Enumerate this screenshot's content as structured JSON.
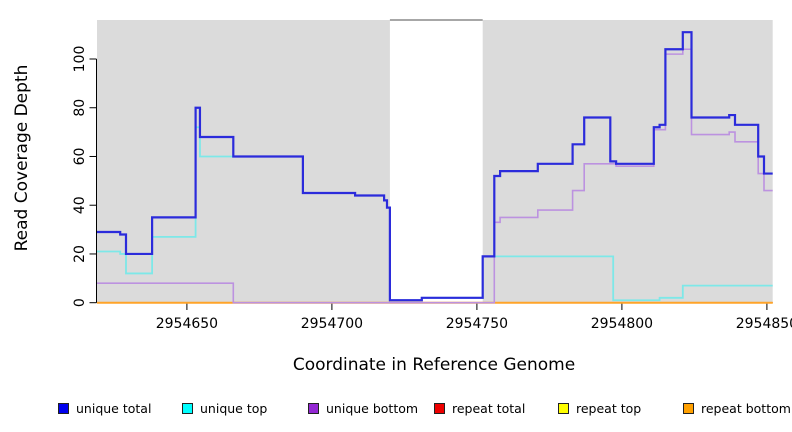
{
  "chart_data": {
    "type": "line",
    "style": "step-coverage",
    "title": "",
    "xlabel": "Coordinate in Reference Genome",
    "ylabel": "Read Coverage Depth",
    "xlim": [
      2954619,
      2954852
    ],
    "ylim": [
      0,
      118.5
    ],
    "xticks": [
      2954650,
      2954700,
      2954750,
      2954800,
      2954850
    ],
    "xtick_labels": [
      "2954650",
      "2954700",
      "2954750",
      "2954800",
      "2954850"
    ],
    "yticks": [
      0,
      20,
      40,
      60,
      80,
      100
    ],
    "ytick_labels": [
      "0",
      "20",
      "40",
      "60",
      "80",
      "100"
    ],
    "grid": false,
    "legend_position": "bottom",
    "shaded_regions": [
      {
        "x0": 2954619,
        "x1": 2954720,
        "v0": 0,
        "v1": 116,
        "color": "#dbdbdb"
      },
      {
        "x0": 2954752,
        "x1": 2954852,
        "v0": 0,
        "v1": 116,
        "color": "#dbdbdb"
      }
    ],
    "gap_top_edge": {
      "x0": 2954720,
      "x1": 2954752,
      "v": 116,
      "color": "#8a8a8a"
    },
    "series": [
      {
        "name": "unique total",
        "line_color": "#2b2bdb",
        "legend_color": "#0000ee",
        "steps": [
          [
            2954619,
            29
          ],
          [
            2954627,
            28
          ],
          [
            2954629,
            20
          ],
          [
            2954638,
            35
          ],
          [
            2954653,
            80
          ],
          [
            2954654.5,
            68
          ],
          [
            2954666,
            60
          ],
          [
            2954690,
            45
          ],
          [
            2954708,
            44
          ],
          [
            2954718,
            42
          ],
          [
            2954719,
            39
          ],
          [
            2954720,
            1
          ],
          [
            2954731,
            2
          ],
          [
            2954752,
            19
          ],
          [
            2954756,
            52
          ],
          [
            2954758,
            54
          ],
          [
            2954771,
            57
          ],
          [
            2954783,
            65
          ],
          [
            2954787,
            76
          ],
          [
            2954796,
            58
          ],
          [
            2954798,
            57
          ],
          [
            2954811,
            72
          ],
          [
            2954813,
            73
          ],
          [
            2954815,
            104
          ],
          [
            2954821,
            111
          ],
          [
            2954824,
            76
          ],
          [
            2954837,
            77
          ],
          [
            2954839,
            73
          ],
          [
            2954847,
            60
          ],
          [
            2954849,
            53
          ],
          [
            2954852,
            53
          ]
        ]
      },
      {
        "name": "unique top",
        "line_color": "#7de8e8",
        "legend_color": "#00ffff",
        "steps": [
          [
            2954619,
            21
          ],
          [
            2954627,
            20
          ],
          [
            2954629,
            12
          ],
          [
            2954638,
            27
          ],
          [
            2954653,
            72
          ],
          [
            2954654.5,
            60
          ],
          [
            2954690,
            45
          ],
          [
            2954708,
            44
          ],
          [
            2954718,
            42
          ],
          [
            2954719,
            39
          ],
          [
            2954720,
            1
          ],
          [
            2954731,
            2
          ],
          [
            2954752,
            19
          ],
          [
            2954797,
            1
          ],
          [
            2954813,
            2
          ],
          [
            2954821,
            7
          ],
          [
            2954852,
            7
          ]
        ]
      },
      {
        "name": "unique bottom",
        "line_color": "#bc92e0",
        "legend_color": "#9327d3",
        "steps": [
          [
            2954619,
            8
          ],
          [
            2954666,
            0
          ],
          [
            2954756,
            33
          ],
          [
            2954758,
            35
          ],
          [
            2954771,
            38
          ],
          [
            2954783,
            46
          ],
          [
            2954787,
            57
          ],
          [
            2954798,
            56
          ],
          [
            2954811,
            71
          ],
          [
            2954815,
            102
          ],
          [
            2954821,
            104
          ],
          [
            2954824,
            69
          ],
          [
            2954837,
            70
          ],
          [
            2954839,
            66
          ],
          [
            2954847,
            53
          ],
          [
            2954849,
            46
          ],
          [
            2954852,
            46
          ]
        ]
      },
      {
        "name": "repeat total",
        "line_color": "#d04040",
        "legend_color": "#ee0000",
        "steps": [
          [
            2954619,
            0
          ],
          [
            2954852,
            0
          ]
        ]
      },
      {
        "name": "repeat top",
        "line_color": "#e8e800",
        "legend_color": "#ffff00",
        "steps": [
          [
            2954619,
            0
          ],
          [
            2954852,
            0
          ]
        ]
      },
      {
        "name": "repeat bottom",
        "line_color": "#ffa428",
        "legend_color": "#ffa000",
        "steps": [
          [
            2954619,
            0
          ],
          [
            2954852,
            0
          ]
        ]
      }
    ],
    "draw_order": [
      4,
      3,
      5,
      2,
      1,
      0
    ]
  },
  "legend": {
    "items": [
      {
        "label": "unique total"
      },
      {
        "label": "unique top"
      },
      {
        "label": "unique bottom"
      },
      {
        "label": "repeat total"
      },
      {
        "label": "repeat top"
      },
      {
        "label": "repeat bottom"
      }
    ]
  }
}
